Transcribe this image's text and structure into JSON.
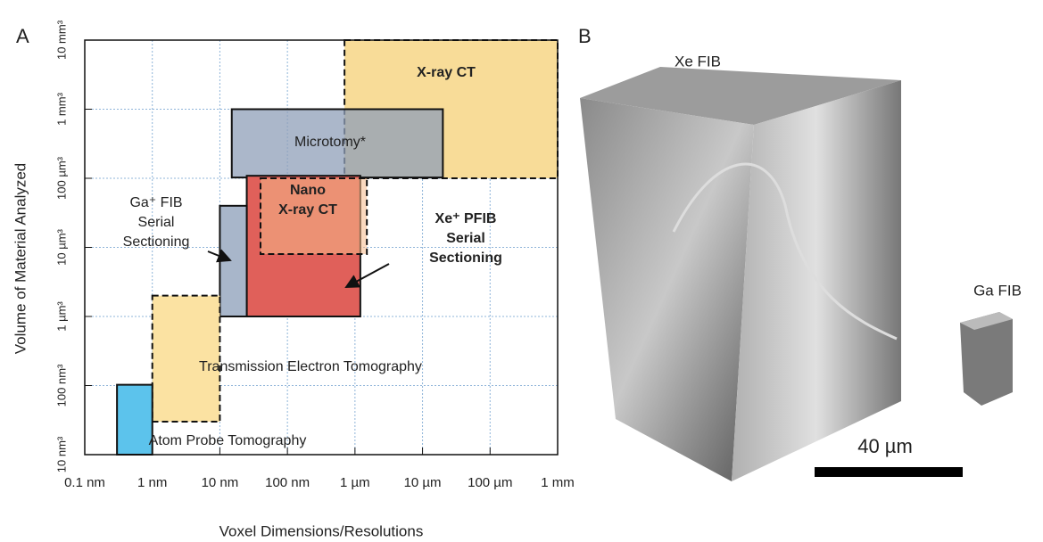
{
  "panel_labels": [
    "A",
    "B"
  ],
  "chart_data": {
    "type": "region",
    "x_label": "Voxel Dimensions/Resolutions",
    "y_label": "Volume of Material Analyzed",
    "xlog": true,
    "ylog": true,
    "grid": true,
    "xlim": [
      0.1,
      1000000
    ],
    "ylim": [
      1e-08,
      10000000000.0
    ],
    "xticks": [
      {
        "value": 0.1,
        "label": "0.1 nm"
      },
      {
        "value": 1,
        "label": "1 nm"
      },
      {
        "value": 10,
        "label": "10 nm"
      },
      {
        "value": 100,
        "label": "100 nm"
      },
      {
        "value": 1000,
        "label": "1 µm"
      },
      {
        "value": 10000,
        "label": "10 µm"
      },
      {
        "value": 100000,
        "label": "100 µm"
      },
      {
        "value": 1000000,
        "label": "1 mm"
      }
    ],
    "yticks": [
      {
        "value": 1e-08,
        "label": "10 nm³"
      },
      {
        "value": 1e-07,
        "label": "100 nm³"
      },
      {
        "value": 1,
        "label": "1 µm³"
      },
      {
        "value": 10,
        "label": "10 µm³"
      },
      {
        "value": 100,
        "label": "100 µm³"
      },
      {
        "value": 1000000000,
        "label": "1 mm³"
      },
      {
        "value": 10000000000,
        "label": "10 mm³"
      }
    ],
    "regions": [
      {
        "label_lines": [
          "X-ray CT"
        ],
        "x": [
          700,
          1000000
        ],
        "y": [
          100,
          10000000000
        ],
        "color": "#f8dc98",
        "dashed": true,
        "bold": true
      },
      {
        "label_lines": [
          "Microtomy*"
        ],
        "x": [
          15,
          20000
        ],
        "y": [
          120,
          1000000000
        ],
        "color": "#8f9fb8",
        "dashed": false,
        "bold": false
      },
      {
        "label_lines": [
          "Xe⁺ PFIB",
          "Serial",
          "Sectioning"
        ],
        "x": [
          25,
          1200
        ],
        "y": [
          1,
          180
        ],
        "color": "#e0605a",
        "dashed": false,
        "bold": true
      },
      {
        "label_lines": [
          "Nano",
          "X-ray CT"
        ],
        "x": [
          40,
          1500
        ],
        "y": [
          8,
          100
        ],
        "color": "#f5b98a",
        "dashed": true,
        "bold": true
      },
      {
        "label_lines": [
          "Ga⁺ FIB",
          "Serial",
          "Sectioning"
        ],
        "x": [
          10,
          25
        ],
        "y": [
          1,
          40
        ],
        "color": "#a8b6ca",
        "dashed": false,
        "bold": false
      },
      {
        "label_lines": [
          "Transmission Electron Tomography"
        ],
        "x": [
          1,
          10
        ],
        "y": [
          3e-08,
          2
        ],
        "color": "#fbe2a2",
        "dashed": true,
        "bold": false
      },
      {
        "label_lines": [
          "Atom Probe Tomography"
        ],
        "x": [
          0.3,
          1
        ],
        "y": [
          1e-08,
          1.2e-07
        ],
        "color": "#5cc3ec",
        "dashed": false,
        "bold": false
      }
    ]
  },
  "image": {
    "labels": [
      "Xe FIB",
      "Ga FIB"
    ],
    "scale_bar": "40 µm"
  }
}
